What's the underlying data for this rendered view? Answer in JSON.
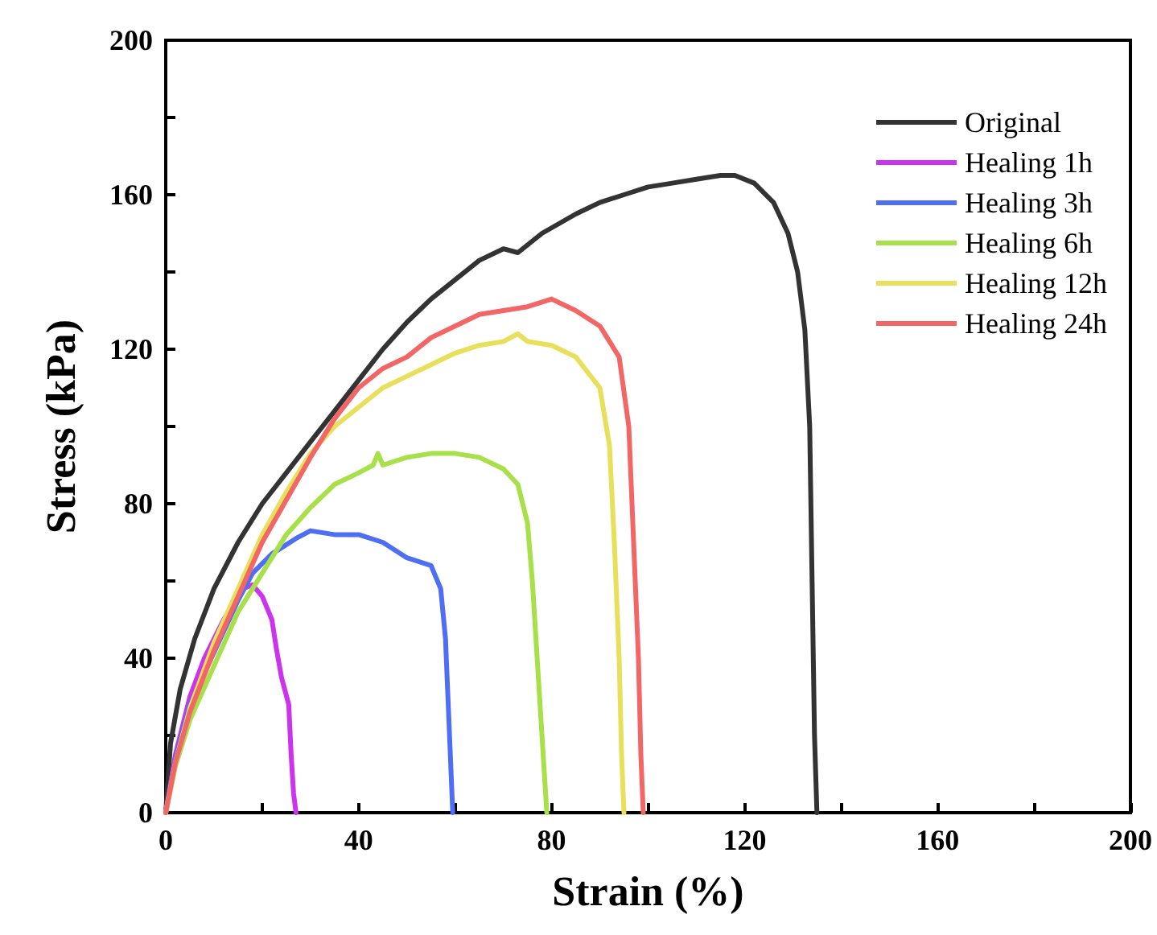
{
  "chart_data": {
    "type": "line",
    "xlabel": "Strain (%)",
    "ylabel": "Stress (kPa)",
    "xlim": [
      0,
      200
    ],
    "ylim": [
      0,
      200
    ],
    "xticks": [
      0,
      {
        "value": 20,
        "label": null
      },
      40,
      {
        "value": 60,
        "label": null
      },
      80,
      {
        "value": 100,
        "label": null
      },
      120,
      {
        "value": 140,
        "label": null
      },
      160,
      {
        "value": 180,
        "label": null
      },
      200
    ],
    "yticks": [
      0,
      {
        "value": 20,
        "label": null
      },
      40,
      {
        "value": 60,
        "label": null
      },
      80,
      {
        "value": 100,
        "label": null
      },
      120,
      {
        "value": 140,
        "label": null
      },
      160,
      {
        "value": 180,
        "label": null
      },
      200
    ],
    "grid": false,
    "legend": "top right",
    "marker": "none",
    "line_style": "solid",
    "series": [
      {
        "name": "Original",
        "color": "#333333",
        "x": [
          0,
          1,
          3,
          6,
          10,
          15,
          20,
          25,
          30,
          35,
          40,
          45,
          50,
          55,
          60,
          65,
          70,
          73,
          78,
          85,
          90,
          95,
          100,
          105,
          110,
          115,
          118,
          122,
          126,
          129,
          131,
          132.5,
          133.5,
          134,
          134.5,
          135
        ],
        "values": [
          0,
          18,
          32,
          45,
          58,
          70,
          80,
          88,
          96,
          104,
          112,
          120,
          127,
          133,
          138,
          143,
          146,
          145,
          150,
          155,
          158,
          160,
          162,
          163,
          164,
          165,
          165,
          163,
          158,
          150,
          140,
          125,
          100,
          60,
          20,
          0
        ]
      },
      {
        "name": "Healing 1h",
        "color": "#cc33ee",
        "x": [
          0,
          2,
          5,
          8,
          12,
          16,
          18,
          20,
          22,
          23,
          24,
          25.5,
          26,
          26.5,
          27
        ],
        "values": [
          0,
          15,
          30,
          40,
          50,
          58,
          59,
          56,
          50,
          42,
          35,
          28,
          15,
          5,
          0
        ]
      },
      {
        "name": "Healing 3h",
        "color": "#4d6ef5",
        "x": [
          0,
          2,
          5,
          15,
          18,
          22,
          27,
          30,
          35,
          40,
          45,
          50,
          55,
          57,
          58,
          58.5,
          59,
          59.5
        ],
        "values": [
          0,
          14,
          28,
          55,
          62,
          67,
          71,
          73,
          72,
          72,
          70,
          66,
          64,
          58,
          45,
          30,
          15,
          0
        ]
      },
      {
        "name": "Healing 6h",
        "color": "#a8e04a",
        "x": [
          0,
          2,
          5,
          10,
          15,
          20,
          25,
          30,
          35,
          40,
          43,
          44,
          45,
          50,
          55,
          60,
          65,
          70,
          73,
          75,
          76,
          77,
          78,
          79
        ],
        "values": [
          0,
          12,
          24,
          38,
          52,
          62,
          72,
          79,
          85,
          88,
          90,
          93,
          90,
          92,
          93,
          93,
          92,
          89,
          85,
          75,
          60,
          40,
          20,
          0
        ]
      },
      {
        "name": "Healing 12h",
        "color": "#e8e05a",
        "x": [
          0,
          2,
          5,
          10,
          15,
          20,
          25,
          30,
          35,
          40,
          45,
          50,
          55,
          60,
          65,
          70,
          73,
          75,
          80,
          85,
          90,
          92,
          93,
          94,
          94.5,
          95
        ],
        "values": [
          0,
          13,
          27,
          44,
          58,
          72,
          83,
          93,
          100,
          105,
          110,
          113,
          116,
          119,
          121,
          122,
          124,
          122,
          121,
          118,
          110,
          95,
          70,
          40,
          15,
          0
        ]
      },
      {
        "name": "Healing 24h",
        "color": "#f26666",
        "x": [
          0,
          2,
          5,
          10,
          15,
          20,
          25,
          30,
          35,
          40,
          45,
          50,
          55,
          60,
          65,
          70,
          75,
          80,
          85,
          90,
          94,
          96,
          97,
          98,
          98.5,
          99
        ],
        "values": [
          0,
          13,
          26,
          42,
          56,
          70,
          81,
          92,
          102,
          110,
          115,
          118,
          123,
          126,
          129,
          130,
          131,
          133,
          130,
          126,
          118,
          100,
          70,
          40,
          15,
          0
        ]
      }
    ]
  }
}
